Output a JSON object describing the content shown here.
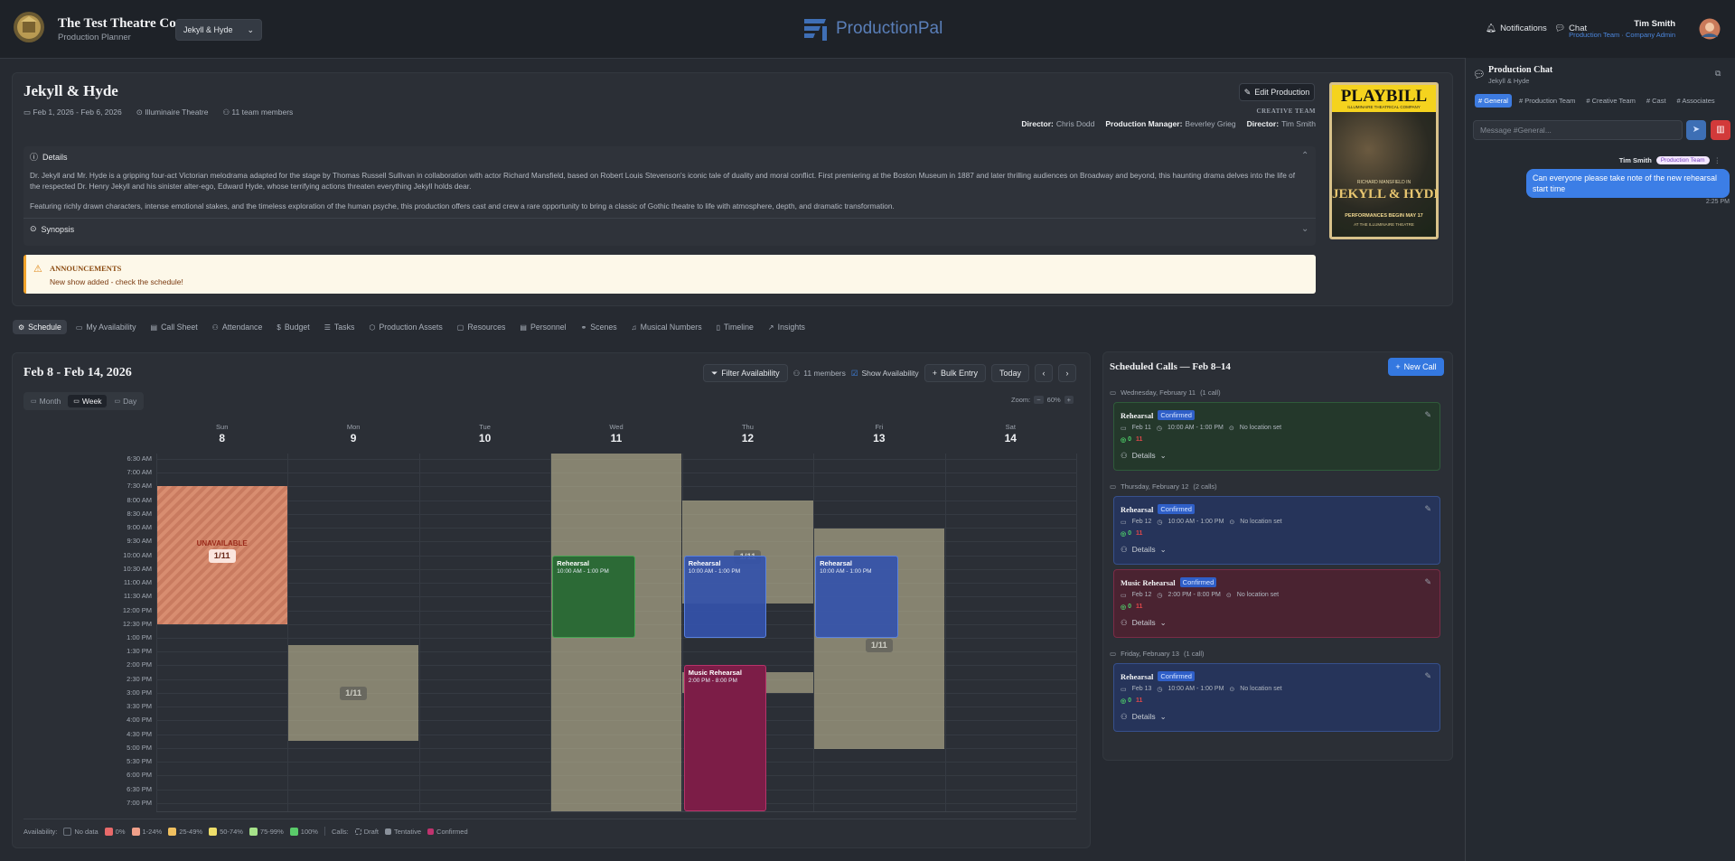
{
  "header": {
    "company": "The Test Theatre Co",
    "subtitle": "Production Planner",
    "production_selector": "Jekyll & Hyde",
    "logo": "ProductionPal",
    "notifications": "Notifications",
    "chat": "Chat",
    "user_name": "Tim Smith",
    "user_role": "Production Team · Company Admin"
  },
  "production": {
    "title": "Jekyll & Hyde",
    "dates": "Feb 1, 2026 - Feb 6, 2026",
    "venue": "Illuminaire Theatre",
    "team": "11 team members",
    "edit_button": "Edit Production",
    "creative_team_label": "CREATIVE TEAM",
    "credits": [
      {
        "role": "Director:",
        "name": "Chris Dodd"
      },
      {
        "role": "Production Manager:",
        "name": "Beverley Grieg"
      },
      {
        "role": "Director:",
        "name": "Tim Smith"
      }
    ],
    "details_label": "Details",
    "details": [
      "Dr. Jekyll and Mr. Hyde is a gripping four-act Victorian melodrama adapted for the stage by Thomas Russell Sullivan in collaboration with actor Richard Mansfield, based on Robert Louis Stevenson's iconic tale of duality and moral conflict. First premiering at the Boston Museum in 1887 and later thrilling audiences on Broadway and beyond, this haunting drama delves into the life of the respected Dr. Henry Jekyll and his sinister alter-ego, Edward Hyde, whose terrifying actions threaten everything Jekyll holds dear.",
      "Featuring richly drawn characters, intense emotional stakes, and the timeless exploration of the human psyche, this production offers cast and crew a rare opportunity to bring a classic of Gothic theatre to life with atmosphere, depth, and dramatic transformation."
    ],
    "synopsis_label": "Synopsis",
    "announcements_label": "ANNOUNCEMENTS",
    "announcement": "New show added - check the schedule!"
  },
  "poster": {
    "masthead": "PLAYBILL",
    "company": "ILLUMINAIRE THEATRICAL COMPANY",
    "billing": "RICHARD MANSFIELD IN",
    "title": "JEKYLL & HYDE",
    "tagline": "PERFORMANCES BEGIN MAY 17",
    "venue": "AT THE ILLUMINAIRE THEATRE"
  },
  "tabs": [
    "Schedule",
    "My Availability",
    "Call Sheet",
    "Attendance",
    "Budget",
    "Tasks",
    "Production Assets",
    "Resources",
    "Personnel",
    "Scenes",
    "Musical Numbers",
    "Timeline",
    "Insights"
  ],
  "calendar": {
    "range": "Feb 8 - Feb 14, 2026",
    "filter": "Filter Availability",
    "members": "11 members",
    "show_availability": "Show Availability",
    "bulk_entry": "Bulk Entry",
    "today": "Today",
    "views": [
      "Month",
      "Week",
      "Day"
    ],
    "zoom_label": "Zoom:",
    "zoom": "60%",
    "days": [
      {
        "dow": "Sun",
        "date": "8"
      },
      {
        "dow": "Mon",
        "date": "9"
      },
      {
        "dow": "Tue",
        "date": "10"
      },
      {
        "dow": "Wed",
        "date": "11"
      },
      {
        "dow": "Thu",
        "date": "12"
      },
      {
        "dow": "Fri",
        "date": "13"
      },
      {
        "dow": "Sat",
        "date": "14"
      }
    ],
    "times": [
      "6:30 AM",
      "7:00 AM",
      "7:30 AM",
      "8:00 AM",
      "8:30 AM",
      "9:00 AM",
      "9:30 AM",
      "10:00 AM",
      "10:30 AM",
      "11:00 AM",
      "11:30 AM",
      "12:00 PM",
      "12:30 PM",
      "1:00 PM",
      "1:30 PM",
      "2:00 PM",
      "2:30 PM",
      "3:00 PM",
      "3:30 PM",
      "4:00 PM",
      "4:30 PM",
      "5:00 PM",
      "5:30 PM",
      "6:00 PM",
      "6:30 PM",
      "7:00 PM"
    ],
    "blocks": [
      {
        "label": "UNAVAILABLE",
        "count": "1/11"
      },
      {
        "count": "1/11"
      },
      {
        "count": "1/11"
      },
      {
        "count": "1/11"
      },
      {
        "count": "1/11"
      }
    ],
    "events": [
      {
        "title": "Rehearsal",
        "time": "10:00 AM - 1:00 PM"
      },
      {
        "title": "Rehearsal",
        "time": "10:00 AM - 1:00 PM"
      },
      {
        "title": "Music Rehearsal",
        "time": "2:00 PM - 8:00 PM"
      },
      {
        "title": "Rehearsal",
        "time": "10:00 AM - 1:00 PM"
      }
    ],
    "legend": {
      "availability_label": "Availability:",
      "availability": [
        "No data",
        "0%",
        "1-24%",
        "25-49%",
        "50-74%",
        "75-99%",
        "100%"
      ],
      "calls_label": "Calls:",
      "calls": [
        "Draft",
        "Tentative",
        "Confirmed"
      ]
    }
  },
  "calls": {
    "title": "Scheduled Calls — Feb 8–14",
    "new_call": "New Call",
    "groups": [
      {
        "label": "Wednesday, February 11",
        "count": "(1 call)",
        "calls": [
          {
            "title": "Rehearsal",
            "status": "Confirmed",
            "date": "Feb 11",
            "time": "10:00 AM - 1:00 PM",
            "location": "No location set",
            "present": "0",
            "absent": "11",
            "details": "Details"
          }
        ]
      },
      {
        "label": "Thursday, February 12",
        "count": "(2 calls)",
        "calls": [
          {
            "title": "Rehearsal",
            "status": "Confirmed",
            "date": "Feb 12",
            "time": "10:00 AM - 1:00 PM",
            "location": "No location set",
            "present": "0",
            "absent": "11",
            "details": "Details"
          },
          {
            "title": "Music Rehearsal",
            "status": "Confirmed",
            "date": "Feb 12",
            "time": "2:00 PM - 8:00 PM",
            "location": "No location set",
            "present": "0",
            "absent": "11",
            "details": "Details"
          }
        ]
      },
      {
        "label": "Friday, February 13",
        "count": "(1 call)",
        "calls": [
          {
            "title": "Rehearsal",
            "status": "Confirmed",
            "date": "Feb 13",
            "time": "10:00 AM - 1:00 PM",
            "location": "No location set",
            "present": "0",
            "absent": "11",
            "details": "Details"
          }
        ]
      }
    ]
  },
  "chat": {
    "title": "Production Chat",
    "subtitle": "Jekyll & Hyde",
    "channels": [
      "General",
      "Production Team",
      "Creative Team",
      "Cast",
      "Associates"
    ],
    "placeholder": "Message #General...",
    "message": {
      "author": "Tim Smith",
      "badge": "Production Team",
      "text": "Can everyone please take note of the new rehearsal start time",
      "time": "2:25 PM"
    }
  }
}
